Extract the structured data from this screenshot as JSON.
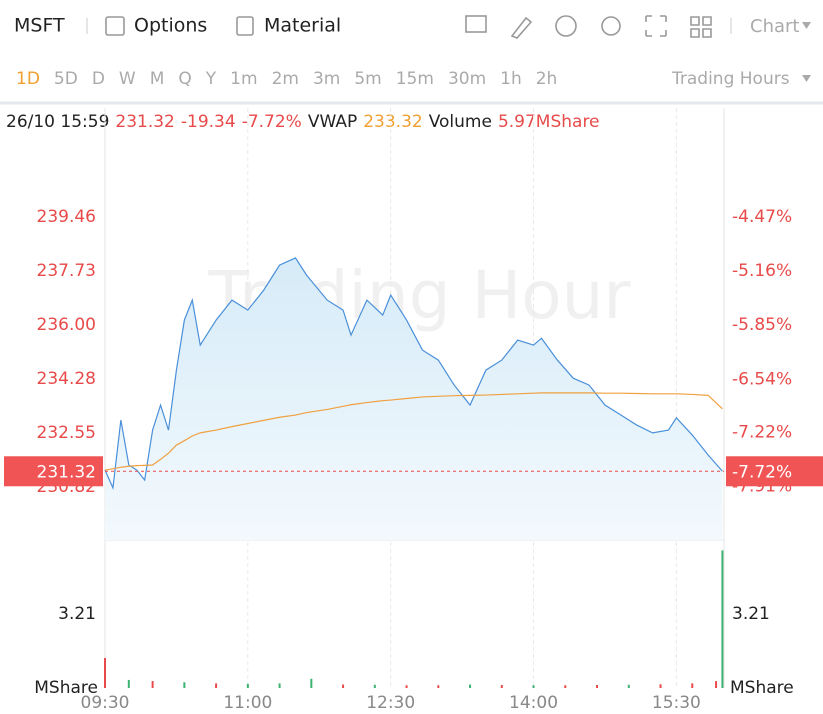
{
  "toolbar": {
    "symbol": "MSFT",
    "items": [
      "Options",
      "Material"
    ],
    "chart_menu": "Chart"
  },
  "periods": {
    "items": [
      "1D",
      "5D",
      "D",
      "W",
      "M",
      "Q",
      "Y",
      "1m",
      "2m",
      "3m",
      "5m",
      "15m",
      "30m",
      "1h",
      "2h"
    ],
    "active": 0,
    "hours_menu": "Trading Hours"
  },
  "quote": {
    "time": "26/10 15:59",
    "price": 231.32,
    "change": -19.34,
    "percent": "-7.72%",
    "vwap_label": "VWAP",
    "vwap": 233.32,
    "volume_label": "Volume",
    "volume": "5.97MShare"
  },
  "chart_data": {
    "type": "line",
    "watermark": "Trading Hour",
    "x": [
      "09:30",
      "09:35",
      "09:40",
      "09:45",
      "09:50",
      "09:55",
      "10:00",
      "10:05",
      "10:10",
      "10:15",
      "10:20",
      "10:25",
      "10:30",
      "10:40",
      "10:50",
      "11:00",
      "11:10",
      "11:20",
      "11:30",
      "11:37",
      "11:50",
      "12:00",
      "12:05",
      "12:15",
      "12:25",
      "12:30",
      "12:40",
      "12:50",
      "13:00",
      "13:10",
      "13:20",
      "13:30",
      "13:40",
      "13:50",
      "14:00",
      "14:05",
      "14:15",
      "14:25",
      "14:35",
      "14:45",
      "14:55",
      "15:05",
      "15:15",
      "15:25",
      "15:30",
      "15:40",
      "15:50",
      "15:59"
    ],
    "series": [
      {
        "name": "Price",
        "color": "#4a90d9",
        "values": [
          231.36,
          230.79,
          232.96,
          231.52,
          231.36,
          231.04,
          232.64,
          233.44,
          232.64,
          234.56,
          236.16,
          236.8,
          235.36,
          236.16,
          236.8,
          236.48,
          237.12,
          237.92,
          238.15,
          237.6,
          236.8,
          236.48,
          235.68,
          236.8,
          236.32,
          236.96,
          236.16,
          235.2,
          234.88,
          234.08,
          233.44,
          234.56,
          234.88,
          235.52,
          235.36,
          235.58,
          234.88,
          234.3,
          234.08,
          233.44,
          233.12,
          232.8,
          232.55,
          232.64,
          233.03,
          232.48,
          231.84,
          231.32
        ]
      },
      {
        "name": "VWAP",
        "color": "#f0a040",
        "values": [
          231.36,
          231.4,
          231.45,
          231.48,
          231.5,
          231.51,
          231.52,
          231.7,
          231.9,
          232.16,
          232.3,
          232.45,
          232.55,
          232.64,
          232.75,
          232.85,
          232.95,
          233.05,
          233.12,
          233.2,
          233.3,
          233.4,
          233.45,
          233.52,
          233.58,
          233.6,
          233.65,
          233.7,
          233.72,
          233.74,
          233.75,
          233.76,
          233.78,
          233.8,
          233.82,
          233.83,
          233.83,
          233.83,
          233.83,
          233.82,
          233.82,
          233.81,
          233.8,
          233.8,
          233.8,
          233.78,
          233.75,
          233.32
        ]
      }
    ],
    "xlim": [
      "09:30",
      "16:00"
    ],
    "xticks": [
      "09:30",
      "11:00",
      "12:30",
      "14:00",
      "15:30"
    ],
    "ylim": [
      229.12,
      242.95
    ],
    "yticks": [
      239.46,
      237.73,
      {
        "value": 236,
        "label": "236.00"
      },
      234.28,
      232.55,
      230.82
    ],
    "y2lim": [
      -8.59,
      -3.08
    ],
    "y2ticks": [
      {
        "value": -4.47,
        "label": "-4.47%"
      },
      {
        "value": -5.16,
        "label": "-5.16%"
      },
      {
        "value": -5.85,
        "label": "-5.85%"
      },
      {
        "value": -6.54,
        "label": "-6.54%"
      },
      {
        "value": -7.22,
        "label": "-7.22%"
      },
      {
        "value": -7.91,
        "label": "-7.91%"
      }
    ],
    "volume": {
      "unit": "MShare",
      "x": [
        "09:30",
        "09:45",
        "10:00",
        "10:20",
        "10:40",
        "11:00",
        "11:20",
        "11:40",
        "12:00",
        "12:20",
        "12:40",
        "13:00",
        "13:20",
        "13:40",
        "14:00",
        "14:20",
        "14:40",
        "15:00",
        "15:20",
        "15:40",
        "15:55",
        "15:59"
      ],
      "values": [
        1.3,
        0.35,
        0.3,
        0.25,
        0.2,
        0.18,
        0.2,
        0.4,
        0.15,
        0.14,
        0.12,
        0.12,
        0.15,
        0.13,
        0.12,
        0.12,
        0.13,
        0.14,
        0.16,
        0.2,
        0.3,
        5.97
      ],
      "colors": [
        "#e84a4a",
        "#3cb371",
        "#e84a4a",
        "#3cb371",
        "#e84a4a",
        "#3cb371",
        "#3cb371",
        "#3cb371",
        "#e84a4a",
        "#3cb371",
        "#e84a4a",
        "#e84a4a",
        "#3cb371",
        "#e84a4a",
        "#3cb371",
        "#e84a4a",
        "#e84a4a",
        "#3cb371",
        "#e84a4a",
        "#e84a4a",
        "#e84a4a",
        "#3cb371"
      ],
      "ylim": [
        0,
        6.42
      ],
      "yticks": [
        3.21
      ]
    }
  }
}
